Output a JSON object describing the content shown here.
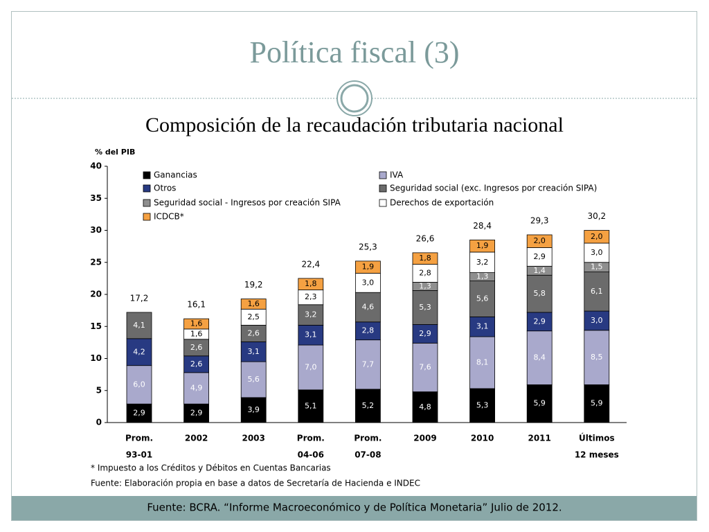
{
  "slide": {
    "title": "Política fiscal (3)",
    "subtitle": "Composición de la recaudación tributaria nacional",
    "footer": "Fuente: BCRA. “Informe Macroeconómico y de Política Monetaria” Julio de 2012."
  },
  "chart_data": {
    "type": "stacked_bar",
    "ylabel": "% del PIB",
    "categories": [
      [
        "Prom.",
        "93-01"
      ],
      [
        "2002"
      ],
      [
        "2003"
      ],
      [
        "Prom.",
        "04-06"
      ],
      [
        "Prom.",
        "07-08"
      ],
      [
        "2009"
      ],
      [
        "2010"
      ],
      [
        "2011"
      ],
      [
        "Últimos",
        "12 meses"
      ]
    ],
    "ylim": [
      0,
      40
    ],
    "yticks": [
      0,
      5,
      10,
      15,
      20,
      25,
      30,
      35,
      40
    ],
    "series": [
      {
        "name": "Ganancias",
        "color": "#000000",
        "values": [
          2.9,
          2.9,
          3.9,
          5.1,
          5.2,
          4.8,
          5.3,
          5.9,
          5.9
        ],
        "value_labels": [
          "2,9",
          "2,9",
          "3,9",
          "5,1",
          "5,2",
          "4,8",
          "5,3",
          "5,9",
          "5,9"
        ]
      },
      {
        "name": "IVA",
        "color": "#a9a9cc",
        "values": [
          6.0,
          4.9,
          5.6,
          7.0,
          7.7,
          7.6,
          8.1,
          8.4,
          8.5
        ],
        "value_labels": [
          "6,0",
          "4,9",
          "5,6",
          "7,0",
          "7,7",
          "7,6",
          "8,1",
          "8,4",
          "8,5"
        ]
      },
      {
        "name": "Otros",
        "color": "#283a82",
        "values": [
          4.2,
          2.6,
          3.1,
          3.1,
          2.8,
          2.9,
          3.1,
          2.9,
          3.0
        ],
        "value_labels": [
          "4,2",
          "2,6",
          "3,1",
          "3,1",
          "2,8",
          "2,9",
          "3,1",
          "2,9",
          "3,0"
        ]
      },
      {
        "name": "Seguridad social (exc. Ingresos por creación SIPA)",
        "color": "#6b6b6b",
        "values": [
          4.1,
          2.6,
          2.6,
          3.2,
          4.6,
          5.3,
          5.6,
          5.8,
          6.1
        ],
        "value_labels": [
          "4,1",
          "2,6",
          "2,6",
          "3,2",
          "4,6",
          "5,3",
          "5,6",
          "5,8",
          "6,1"
        ]
      },
      {
        "name": "Seguridad social - Ingresos por creación SIPA",
        "color": "#8f8f8f",
        "values": [
          null,
          null,
          null,
          null,
          null,
          1.3,
          1.3,
          1.4,
          1.5
        ],
        "value_labels": [
          null,
          null,
          null,
          null,
          null,
          "1,3",
          "1,3",
          "1,4",
          "1,5"
        ]
      },
      {
        "name": "Derechos de exportación",
        "color": "#ffffff",
        "values": [
          null,
          1.6,
          2.5,
          2.3,
          3.0,
          2.8,
          3.2,
          2.9,
          3.0
        ],
        "value_labels": [
          null,
          "1,6",
          "2,5",
          "2,3",
          "3,0",
          "2,8",
          "3,2",
          "2,9",
          "3,0"
        ]
      },
      {
        "name": "ICDCB*",
        "color": "#f5a142",
        "values": [
          null,
          1.6,
          1.6,
          1.8,
          1.9,
          1.8,
          1.9,
          2.0,
          2.0
        ],
        "value_labels": [
          null,
          "1,6",
          "1,6",
          "1,8",
          "1,9",
          "1,8",
          "1,9",
          "2,0",
          "2,0"
        ]
      }
    ],
    "totals": [
      17.2,
      16.1,
      19.2,
      22.4,
      25.3,
      26.6,
      28.4,
      29.3,
      30.2
    ],
    "total_labels": [
      "17,2",
      "16,1",
      "19,2",
      "22,4",
      "25,3",
      "26,6",
      "28,4",
      "29,3",
      "30,2"
    ],
    "notes": [
      "* Impuesto a los Créditos y Débitos en Cuentas Bancarias",
      "Fuente: Elaboración propia en base a datos de Secretaría de Hacienda e INDEC"
    ]
  }
}
